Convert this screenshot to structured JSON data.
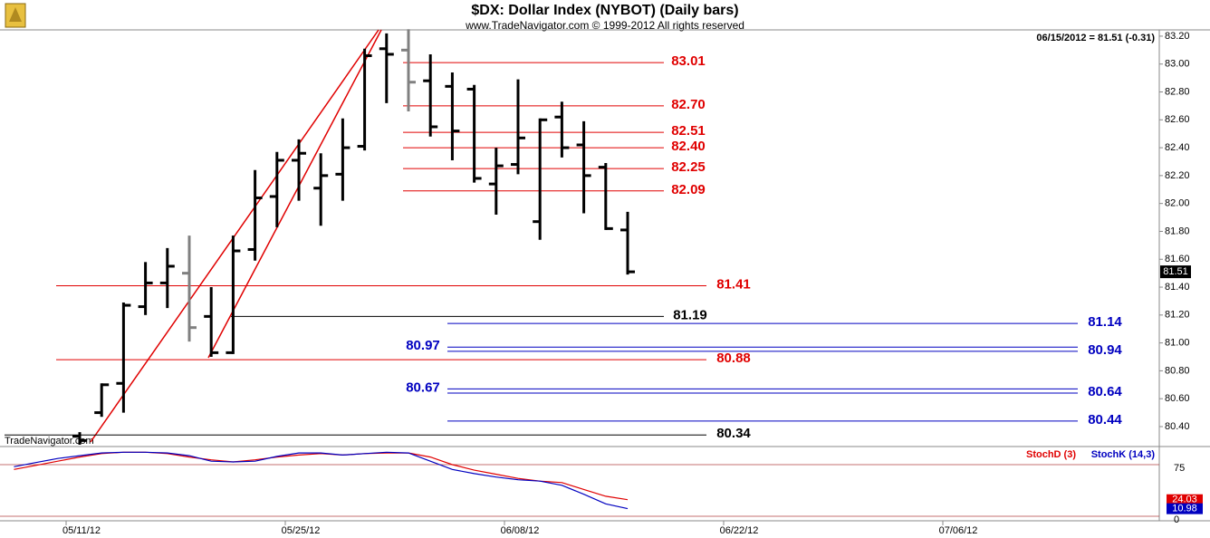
{
  "chart_data": [
    {
      "type": "ohlc",
      "title": "$DX:  Dollar Index (NYBOT)  (Daily bars)",
      "subtitle": "www.TradeNavigator.com © 1999-2012 All rights reserved",
      "header": "06/15/2012 = 81.51 (-0.31)",
      "watermark": "TradeNavigator.com",
      "last_price_label": "81.51",
      "categories": [
        null,
        null,
        null,
        "05/11/12",
        null,
        null,
        null,
        null,
        null,
        null,
        null,
        null,
        null,
        "05/25/12",
        null,
        null,
        null,
        null,
        null,
        null,
        null,
        null,
        null,
        "06/08/12",
        null,
        null,
        null,
        null,
        null,
        null,
        null,
        null,
        null,
        "06/22/12",
        null,
        null,
        null,
        null,
        null,
        null,
        null,
        null,
        null,
        "07/06/12",
        null,
        null,
        null,
        null,
        null,
        null,
        null,
        null
      ],
      "series": [
        {
          "name": "$DX",
          "open": [
            null,
            null,
            null,
            80.33,
            80.5,
            80.71,
            81.26,
            81.43,
            81.5,
            81.19,
            80.93,
            81.67,
            82.05,
            82.31,
            82.11,
            82.21,
            82.41,
            83.11,
            83.1,
            82.88,
            82.84,
            82.82,
            82.14,
            82.28,
            81.87,
            82.62,
            82.42,
            82.26,
            81.81,
            null,
            null,
            null,
            null,
            null,
            null,
            null,
            null,
            null,
            null,
            null,
            null,
            null,
            null,
            null,
            null,
            null,
            null,
            null,
            null,
            null,
            null,
            null
          ],
          "high": [
            null,
            null,
            null,
            80.36,
            80.71,
            81.29,
            81.58,
            81.68,
            81.77,
            81.4,
            81.77,
            82.24,
            82.37,
            82.46,
            82.36,
            82.61,
            83.11,
            83.22,
            83.25,
            83.07,
            82.94,
            82.85,
            82.4,
            82.89,
            82.61,
            82.73,
            82.59,
            82.29,
            81.94,
            null,
            null,
            null,
            null,
            null,
            null,
            null,
            null,
            null,
            null,
            null,
            null,
            null,
            null,
            null,
            null,
            null,
            null,
            null,
            null,
            null,
            null,
            null
          ],
          "low": [
            null,
            null,
            null,
            80.27,
            80.47,
            80.5,
            81.2,
            81.25,
            81.01,
            80.9,
            80.92,
            81.59,
            81.83,
            82.02,
            81.84,
            82.02,
            82.38,
            82.72,
            82.66,
            82.48,
            82.31,
            82.15,
            81.92,
            82.21,
            81.74,
            82.33,
            81.93,
            81.81,
            81.49,
            null,
            null,
            null,
            null,
            null,
            null,
            null,
            null,
            null,
            null,
            null,
            null,
            null,
            null,
            null,
            null,
            null,
            null,
            null,
            null,
            null,
            null,
            null
          ],
          "close": [
            null,
            null,
            null,
            80.3,
            80.7,
            81.27,
            81.43,
            81.55,
            81.11,
            80.93,
            81.66,
            82.04,
            82.31,
            82.36,
            82.2,
            82.4,
            83.06,
            83.07,
            82.87,
            82.55,
            82.52,
            82.18,
            82.27,
            82.47,
            82.6,
            82.4,
            82.2,
            81.82,
            81.51,
            null,
            null,
            null,
            null,
            null,
            null,
            null,
            null,
            null,
            null,
            null,
            null,
            null,
            null,
            null,
            null,
            null,
            null,
            null,
            null,
            null,
            null,
            null
          ],
          "bar_colors": [
            null,
            null,
            null,
            "#000000",
            "#000000",
            "#000000",
            "#000000",
            "#000000",
            "#808080",
            "#000000",
            "#000000",
            "#000000",
            "#000000",
            "#000000",
            "#000000",
            "#000000",
            "#000000",
            "#000000",
            "#808080",
            "#000000",
            "#000000",
            "#000000",
            "#000000",
            "#000000",
            "#000000",
            "#000000",
            "#000000",
            "#000000",
            "#000000",
            null,
            null,
            null,
            null,
            null,
            null,
            null,
            null,
            null,
            null,
            null,
            null,
            null,
            null,
            null,
            null,
            null,
            null,
            null,
            null,
            null,
            null,
            null
          ]
        }
      ],
      "levels": [
        {
          "value": 83.01,
          "label": "83.01",
          "color": "#e00000"
        },
        {
          "value": 82.7,
          "label": "82.70",
          "color": "#e00000"
        },
        {
          "value": 82.51,
          "label": "82.51",
          "color": "#e00000"
        },
        {
          "value": 82.4,
          "label": "82.40",
          "color": "#e00000"
        },
        {
          "value": 82.25,
          "label": "82.25",
          "color": "#e00000"
        },
        {
          "value": 82.09,
          "label": "82.09",
          "color": "#e00000"
        },
        {
          "value": 81.41,
          "label": "81.41",
          "color": "#e00000"
        },
        {
          "value": 81.19,
          "label": "81.19",
          "color": "#000000"
        },
        {
          "value": 80.88,
          "label": "80.88",
          "color": "#e00000"
        },
        {
          "value": 80.34,
          "label": "80.34",
          "color": "#000000"
        },
        {
          "value": 81.14,
          "label": "81.14",
          "color": "#0000c0"
        },
        {
          "value": 80.97,
          "label": "80.97",
          "color": "#0000c0"
        },
        {
          "value": 80.94,
          "label": "80.94",
          "color": "#0000c0"
        },
        {
          "value": 80.67,
          "label": "80.67",
          "color": "#0000c0"
        },
        {
          "value": 80.64,
          "label": "80.64",
          "color": "#0000c0"
        },
        {
          "value": 80.44,
          "label": "80.44",
          "color": "#0000c0"
        }
      ],
      "ylim": [
        80.257,
        83.245
      ],
      "yticks": [
        {
          "value": 80.4,
          "label": "80.40"
        },
        {
          "value": 80.6,
          "label": "80.60"
        },
        {
          "value": 80.8,
          "label": "80.80"
        },
        {
          "value": 81.0,
          "label": "81.00"
        },
        {
          "value": 81.2,
          "label": "81.20"
        },
        {
          "value": 81.4,
          "label": "81.40"
        },
        {
          "value": 81.6,
          "label": "81.60"
        },
        {
          "value": 81.8,
          "label": "81.80"
        },
        {
          "value": 82.0,
          "label": "82.00"
        },
        {
          "value": 82.2,
          "label": "82.20"
        },
        {
          "value": 82.4,
          "label": "82.40"
        },
        {
          "value": 82.6,
          "label": "82.60"
        },
        {
          "value": 82.8,
          "label": "82.80"
        },
        {
          "value": 83.0,
          "label": "83.00"
        },
        {
          "value": 83.2,
          "label": "83.20"
        }
      ],
      "grid": false
    },
    {
      "type": "line",
      "series": [
        {
          "name": "StochD (3)",
          "color": "#e00000",
          "value_label": "24.03",
          "values": [
            68,
            74,
            80,
            86,
            91,
            93,
            93,
            91,
            86,
            82,
            79,
            82,
            86,
            89,
            91,
            89,
            91,
            92,
            92,
            86,
            75,
            67,
            61,
            55,
            51,
            49,
            39,
            29,
            24.03,
            null,
            null,
            null,
            null,
            null,
            null,
            null,
            null,
            null,
            null,
            null,
            null,
            null,
            null,
            null,
            null,
            null,
            null,
            null,
            null,
            null,
            null,
            null
          ]
        },
        {
          "name": "StochK (14,3)",
          "color": "#0000c0",
          "value_label": "10.98",
          "values": [
            72,
            78,
            84,
            88,
            92,
            93,
            93,
            92,
            88,
            80,
            79,
            80,
            87,
            92,
            92,
            89,
            91,
            93,
            92,
            80,
            68,
            62,
            57,
            53,
            51,
            45,
            32,
            18,
            10.98,
            null,
            null,
            null,
            null,
            null,
            null,
            null,
            null,
            null,
            null,
            null,
            null,
            null,
            null,
            null,
            null,
            null,
            null,
            null,
            null,
            null,
            null,
            null
          ]
        }
      ],
      "ylim": [
        -6.6,
        100
      ],
      "yticks": [
        0,
        75
      ],
      "grid": true
    }
  ]
}
